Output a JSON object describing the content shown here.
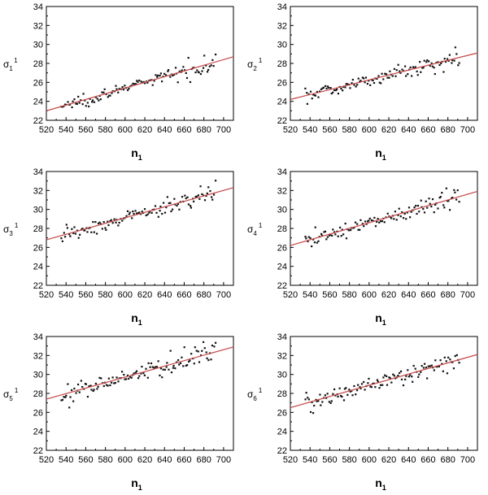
{
  "colors": {
    "points": "#111111",
    "fit_line": "#c85050",
    "axes": "#000000"
  },
  "chart_data": [
    {
      "type": "scatter",
      "title": "",
      "xlabel_main": "n",
      "xlabel_sub": "1",
      "ylabel_main": "σ",
      "ylabel_sub": "1",
      "ylabel_sup": "1",
      "xlim": [
        520,
        710
      ],
      "ylim": [
        22,
        34
      ],
      "xticks": [
        520,
        540,
        560,
        580,
        600,
        620,
        640,
        660,
        680,
        700
      ],
      "yticks": [
        22,
        24,
        26,
        28,
        30,
        32,
        34
      ],
      "fit": {
        "x": [
          520,
          710
        ],
        "y": [
          23.0,
          28.7
        ]
      },
      "x_range": [
        535,
        692
      ],
      "noise": 0.28,
      "spread": 0.0012,
      "points": []
    },
    {
      "type": "scatter",
      "title": "",
      "xlabel_main": "n",
      "xlabel_sub": "1",
      "ylabel_main": "σ",
      "ylabel_sub": "2",
      "ylabel_sup": "1",
      "xlim": [
        520,
        710
      ],
      "ylim": [
        22,
        34
      ],
      "xticks": [
        520,
        540,
        560,
        580,
        600,
        620,
        640,
        660,
        680,
        700
      ],
      "yticks": [
        22,
        24,
        26,
        28,
        30,
        32,
        34
      ],
      "fit": {
        "x": [
          520,
          710
        ],
        "y": [
          24.2,
          29.1
        ]
      },
      "x_range": [
        535,
        692
      ],
      "noise": 0.3,
      "spread": 0.0025,
      "points": []
    },
    {
      "type": "scatter",
      "title": "",
      "xlabel_main": "n",
      "xlabel_sub": "1",
      "ylabel_main": "σ",
      "ylabel_sub": "3",
      "ylabel_sup": "1",
      "xlim": [
        520,
        710
      ],
      "ylim": [
        22,
        34
      ],
      "xticks": [
        520,
        540,
        560,
        580,
        600,
        620,
        640,
        660,
        680,
        700
      ],
      "yticks": [
        22,
        24,
        26,
        28,
        30,
        32,
        34
      ],
      "fit": {
        "x": [
          520,
          710
        ],
        "y": [
          26.8,
          32.3
        ]
      },
      "x_range": [
        535,
        692
      ],
      "noise": 0.32,
      "spread": 0.0025,
      "points": []
    },
    {
      "type": "scatter",
      "title": "",
      "xlabel_main": "n",
      "xlabel_sub": "1",
      "ylabel_main": "σ",
      "ylabel_sub": "4",
      "ylabel_sup": "1",
      "xlim": [
        520,
        710
      ],
      "ylim": [
        22,
        34
      ],
      "xticks": [
        520,
        540,
        560,
        580,
        600,
        620,
        640,
        660,
        680,
        700
      ],
      "yticks": [
        22,
        24,
        26,
        28,
        30,
        32,
        34
      ],
      "fit": {
        "x": [
          520,
          710
        ],
        "y": [
          26.2,
          31.9
        ]
      },
      "x_range": [
        535,
        692
      ],
      "noise": 0.3,
      "spread": 0.0025,
      "points": []
    },
    {
      "type": "scatter",
      "title": "",
      "xlabel_main": "n",
      "xlabel_sub": "1",
      "ylabel_main": "σ",
      "ylabel_sub": "5",
      "ylabel_sup": "1",
      "xlim": [
        520,
        710
      ],
      "ylim": [
        22,
        34
      ],
      "xticks": [
        520,
        540,
        560,
        580,
        600,
        620,
        640,
        660,
        680,
        700
      ],
      "yticks": [
        22,
        24,
        26,
        28,
        30,
        32,
        34
      ],
      "fit": {
        "x": [
          520,
          710
        ],
        "y": [
          27.4,
          32.9
        ]
      },
      "x_range": [
        535,
        692
      ],
      "noise": 0.32,
      "spread": 0.0025,
      "points": []
    },
    {
      "type": "scatter",
      "title": "",
      "xlabel_main": "n",
      "xlabel_sub": "1",
      "ylabel_main": "σ",
      "ylabel_sub": "6",
      "ylabel_sup": "1",
      "xlim": [
        520,
        710
      ],
      "ylim": [
        22,
        34
      ],
      "xticks": [
        520,
        540,
        560,
        580,
        600,
        620,
        640,
        660,
        680,
        700
      ],
      "yticks": [
        22,
        24,
        26,
        28,
        30,
        32,
        34
      ],
      "fit": {
        "x": [
          520,
          710
        ],
        "y": [
          26.5,
          32.1
        ]
      },
      "x_range": [
        535,
        692
      ],
      "noise": 0.3,
      "spread": 0.0025,
      "points": []
    }
  ]
}
